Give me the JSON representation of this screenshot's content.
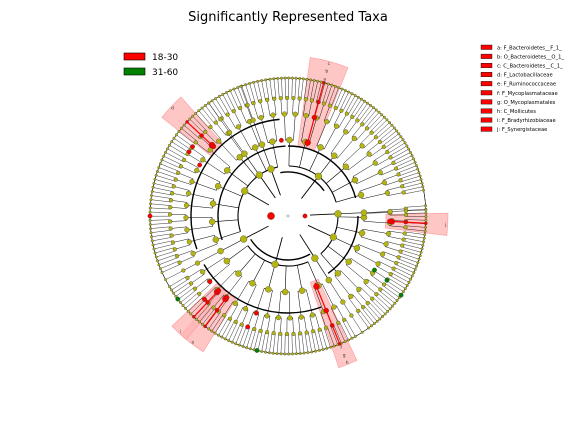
{
  "chart_data": {
    "type": "cladogram",
    "title": "Significantly Represented Taxa",
    "groups": [
      {
        "name": "18-30",
        "color": "#ff0000"
      },
      {
        "name": "31-60",
        "color": "#008000"
      }
    ],
    "taxa_key": [
      {
        "letter": "a",
        "taxon": "a: F_Bacteroidetes__F_1_"
      },
      {
        "letter": "b",
        "taxon": "b: O_Bacteroidetes__O_1_"
      },
      {
        "letter": "c",
        "taxon": "c: C_Bacteroidetes__C_1_"
      },
      {
        "letter": "d",
        "taxon": "d: F_Lactobacillaceae"
      },
      {
        "letter": "e",
        "taxon": "e: F_Ruminococcaceae"
      },
      {
        "letter": "f",
        "taxon": "f: F_Mycoplasmataceae"
      },
      {
        "letter": "g",
        "taxon": "g: O_Mycoplasmatales"
      },
      {
        "letter": "h",
        "taxon": "h: C_Mollicutes"
      },
      {
        "letter": "i",
        "taxon": "i: F_Bradyrhizobiaceae"
      },
      {
        "letter": "j",
        "taxon": "j: F_Synergistaceae"
      }
    ],
    "highlighted_clades": [
      {
        "letters": [
          "c",
          "b",
          "a"
        ],
        "group": "18-30"
      },
      {
        "letters": [
          "d"
        ],
        "group": "18-30"
      },
      {
        "letters": [
          "e"
        ],
        "group": "18-30"
      },
      {
        "letters": [
          "j"
        ],
        "group": "18-30"
      },
      {
        "letters": [
          "h",
          "g",
          "f"
        ],
        "group": "18-30"
      },
      {
        "letters": [
          "i"
        ],
        "group": "18-30"
      }
    ],
    "colors": {
      "node_default": "#b5b512",
      "node_red": "#ff0000",
      "node_green": "#008000",
      "band_fill": "#ffb3b3"
    }
  }
}
